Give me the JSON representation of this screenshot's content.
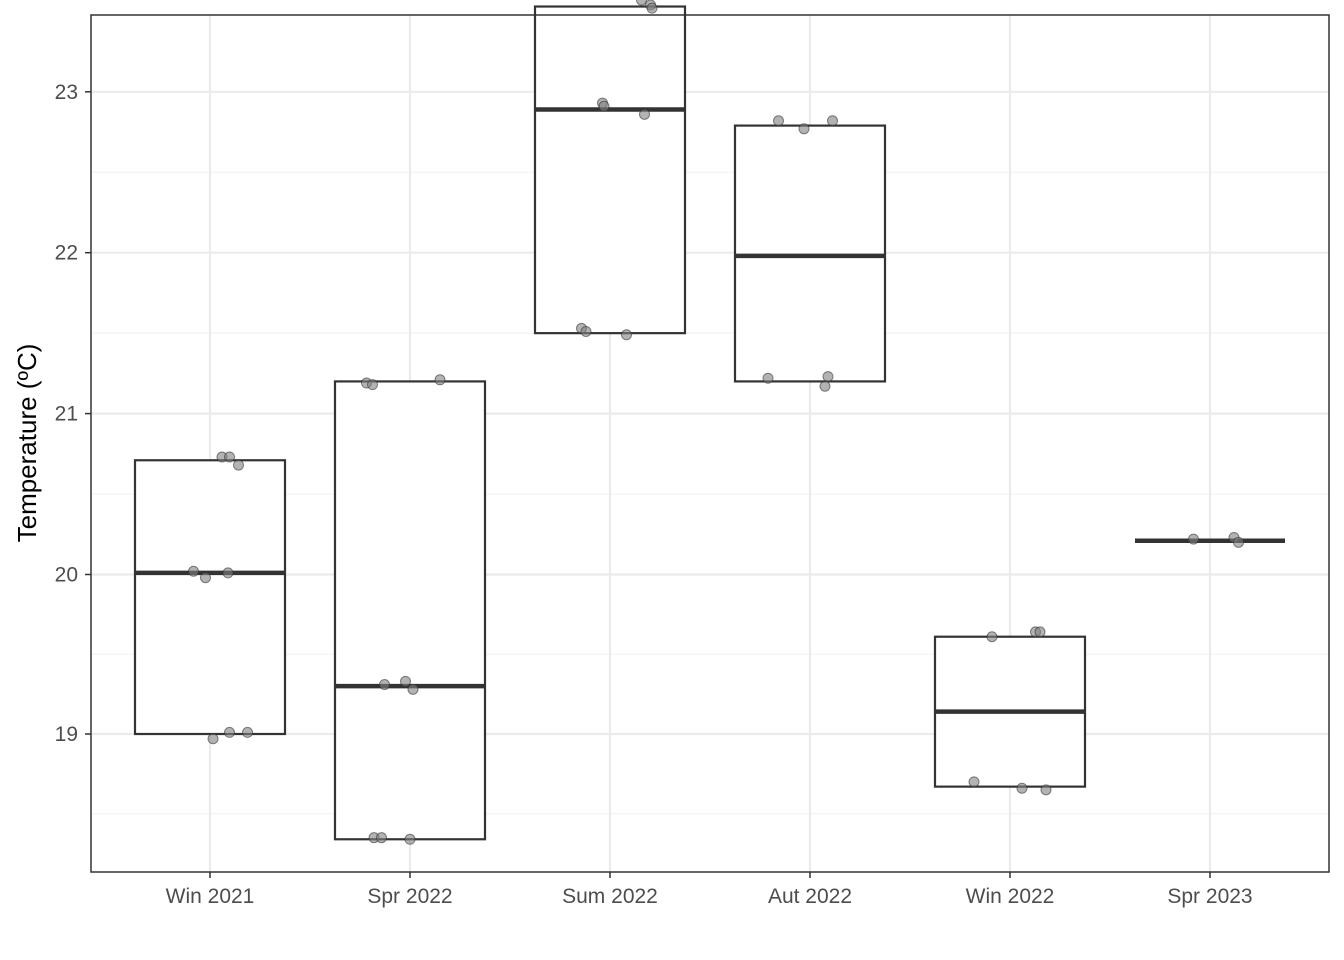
{
  "chart_data": {
    "type": "box",
    "ylabel": "Temperature (ºC)",
    "xlabel": "",
    "categories": [
      "Win 2021",
      "Spr 2022",
      "Sum 2022",
      "Aut 2022",
      "Win 2022",
      "Spr 2023"
    ],
    "ylim": [
      18.2,
      23.85
    ],
    "yticks": [
      19,
      20,
      21,
      22,
      23
    ],
    "ytick_labels": [
      "19",
      "20",
      "21",
      "22",
      "23"
    ],
    "grid": true,
    "boxes": [
      {
        "category": "Win 2021",
        "q1": 19.0,
        "median": 20.01,
        "q3": 20.71
      },
      {
        "category": "Spr 2022",
        "q1": 18.34,
        "median": 19.3,
        "q3": 21.2
      },
      {
        "category": "Sum 2022",
        "q1": 21.5,
        "median": 22.89,
        "q3": 23.53
      },
      {
        "category": "Aut 2022",
        "q1": 21.2,
        "median": 21.98,
        "q3": 22.79
      },
      {
        "category": "Win 2022",
        "q1": 18.67,
        "median": 19.14,
        "q3": 19.61
      },
      {
        "category": "Spr 2023",
        "q1": 20.21,
        "median": 20.21,
        "q3": 20.21
      }
    ],
    "points": [
      {
        "category": "Win 2021",
        "jitter": 0.08,
        "y": 20.73
      },
      {
        "category": "Win 2021",
        "jitter": 0.13,
        "y": 20.73
      },
      {
        "category": "Win 2021",
        "jitter": 0.19,
        "y": 20.68
      },
      {
        "category": "Win 2021",
        "jitter": -0.11,
        "y": 20.02
      },
      {
        "category": "Win 2021",
        "jitter": -0.03,
        "y": 19.98
      },
      {
        "category": "Win 2021",
        "jitter": 0.12,
        "y": 20.01
      },
      {
        "category": "Win 2021",
        "jitter": 0.02,
        "y": 18.97
      },
      {
        "category": "Win 2021",
        "jitter": 0.13,
        "y": 19.01
      },
      {
        "category": "Win 2021",
        "jitter": 0.25,
        "y": 19.01
      },
      {
        "category": "Spr 2022",
        "jitter": -0.29,
        "y": 21.19
      },
      {
        "category": "Spr 2022",
        "jitter": -0.25,
        "y": 21.18
      },
      {
        "category": "Spr 2022",
        "jitter": 0.2,
        "y": 21.21
      },
      {
        "category": "Spr 2022",
        "jitter": -0.17,
        "y": 19.31
      },
      {
        "category": "Spr 2022",
        "jitter": -0.03,
        "y": 19.33
      },
      {
        "category": "Spr 2022",
        "jitter": 0.02,
        "y": 19.28
      },
      {
        "category": "Spr 2022",
        "jitter": -0.24,
        "y": 18.35
      },
      {
        "category": "Spr 2022",
        "jitter": -0.19,
        "y": 18.35
      },
      {
        "category": "Spr 2022",
        "jitter": 0.0,
        "y": 18.34
      },
      {
        "category": "Sum 2022",
        "jitter": 0.21,
        "y": 23.57
      },
      {
        "category": "Sum 2022",
        "jitter": 0.27,
        "y": 23.54
      },
      {
        "category": "Sum 2022",
        "jitter": 0.28,
        "y": 23.52
      },
      {
        "category": "Sum 2022",
        "jitter": -0.05,
        "y": 22.93
      },
      {
        "category": "Sum 2022",
        "jitter": -0.04,
        "y": 22.91
      },
      {
        "category": "Sum 2022",
        "jitter": 0.23,
        "y": 22.86
      },
      {
        "category": "Sum 2022",
        "jitter": -0.19,
        "y": 21.53
      },
      {
        "category": "Sum 2022",
        "jitter": -0.16,
        "y": 21.51
      },
      {
        "category": "Sum 2022",
        "jitter": 0.11,
        "y": 21.49
      },
      {
        "category": "Aut 2022",
        "jitter": -0.21,
        "y": 22.82
      },
      {
        "category": "Aut 2022",
        "jitter": -0.04,
        "y": 22.77
      },
      {
        "category": "Aut 2022",
        "jitter": 0.15,
        "y": 22.82
      },
      {
        "category": "Aut 2022",
        "jitter": -0.28,
        "y": 21.22
      },
      {
        "category": "Aut 2022",
        "jitter": 0.12,
        "y": 21.23
      },
      {
        "category": "Aut 2022",
        "jitter": 0.1,
        "y": 21.17
      },
      {
        "category": "Win 2022",
        "jitter": -0.12,
        "y": 19.61
      },
      {
        "category": "Win 2022",
        "jitter": 0.17,
        "y": 19.64
      },
      {
        "category": "Win 2022",
        "jitter": 0.2,
        "y": 19.64
      },
      {
        "category": "Win 2022",
        "jitter": -0.24,
        "y": 18.7
      },
      {
        "category": "Win 2022",
        "jitter": 0.08,
        "y": 18.66
      },
      {
        "category": "Win 2022",
        "jitter": 0.24,
        "y": 18.65
      },
      {
        "category": "Spr 2023",
        "jitter": -0.11,
        "y": 20.22
      },
      {
        "category": "Spr 2023",
        "jitter": 0.16,
        "y": 20.23
      },
      {
        "category": "Spr 2023",
        "jitter": 0.19,
        "y": 20.2
      }
    ],
    "colors": {
      "box_stroke": "#333333",
      "box_fill": "#ffffff",
      "point_fill": "#808080",
      "point_stroke": "#333333",
      "grid_major": "#ebebeb",
      "grid_minor": "#f2f2f2",
      "panel_border": "#333333",
      "tick_text": "#4d4d4d"
    }
  }
}
